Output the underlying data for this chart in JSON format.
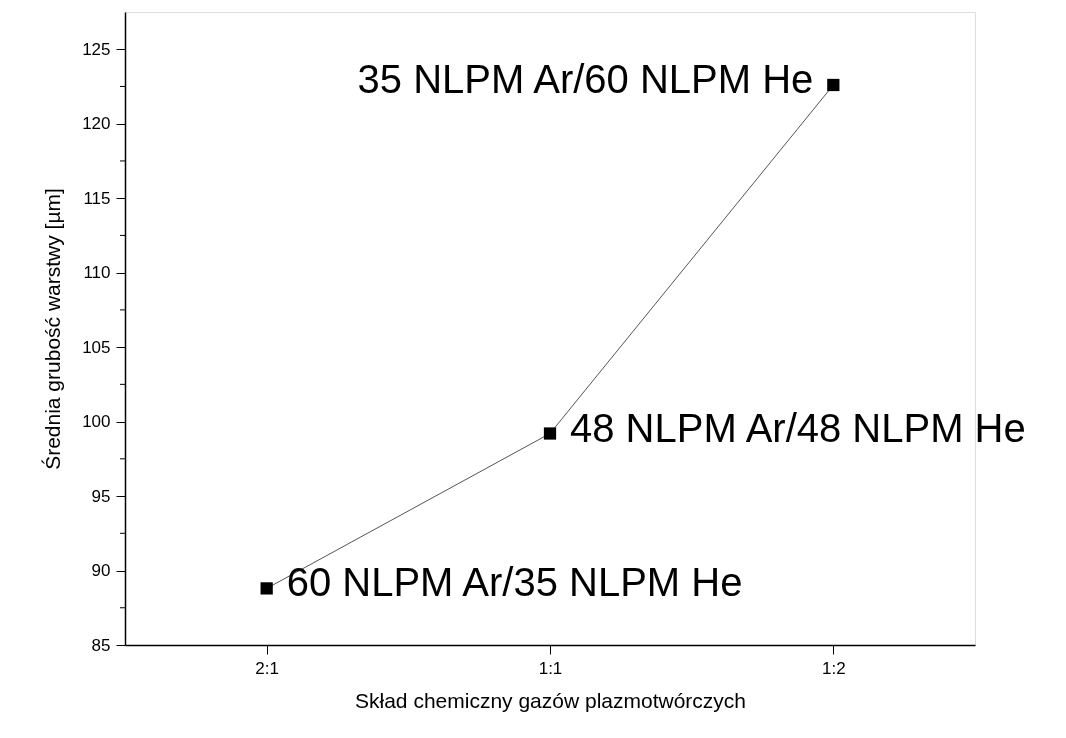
{
  "chart_data": {
    "type": "line",
    "xlabel": "Skład chemiczny gazów plazmotwórczych",
    "ylabel": "Średnia grubość warstwy [µm]",
    "categories": [
      "2:1",
      "1:1",
      "1:2"
    ],
    "series": [
      {
        "color": "#000000",
        "values": [
          88.8,
          99.2,
          122.6
        ]
      }
    ],
    "ylim": [
      85,
      127.5
    ],
    "yticks": [
      85,
      {
        "value": 87.5,
        "label": null
      },
      90,
      {
        "value": 92.5,
        "label": null
      },
      95,
      {
        "value": 97.5,
        "label": null
      },
      100,
      {
        "value": 102.5,
        "label": null
      },
      105,
      {
        "value": 107.5,
        "label": null
      },
      110,
      {
        "value": 112.5,
        "label": null
      },
      115,
      {
        "value": 117.5,
        "label": null
      },
      120,
      {
        "value": 122.5,
        "label": null
      },
      125
    ],
    "marker": "square",
    "grid": false,
    "annotations": [
      {
        "text": "60 NLPM Ar/35 NLPM He",
        "x": "2:1",
        "y": 88.8
      },
      {
        "text": "48 NLPM Ar/48 NLPM He",
        "x": "1:1",
        "y": 99.2
      },
      {
        "text": "35 NLPM Ar/60 NLPM He",
        "x": "1:2",
        "y": 122.6
      }
    ]
  }
}
